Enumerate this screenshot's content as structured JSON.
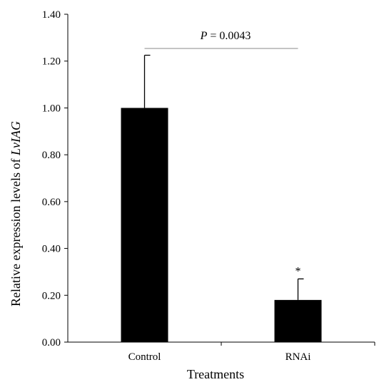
{
  "chart_data": {
    "type": "bar",
    "categories": [
      "Control",
      "RNAi"
    ],
    "values": [
      1.0,
      0.18
    ],
    "errors": [
      0.225,
      0.09
    ],
    "significance_marks": [
      "",
      "*"
    ],
    "xlabel": "Treatments",
    "ylabel_prefix": "Relative expression levels of ",
    "ylabel_gene": "LvIAG",
    "ylim": [
      0,
      1.4
    ],
    "yticks": [
      "0.00",
      "0.20",
      "0.40",
      "0.60",
      "0.80",
      "1.00",
      "1.20",
      "1.40"
    ],
    "annotation": {
      "p_symbol": "P",
      "p_rest": " = 0.0043"
    },
    "grid": false,
    "legend": "none",
    "colors": {
      "bar": "#000000",
      "axis": "#000000",
      "bracket": "#888888"
    }
  }
}
